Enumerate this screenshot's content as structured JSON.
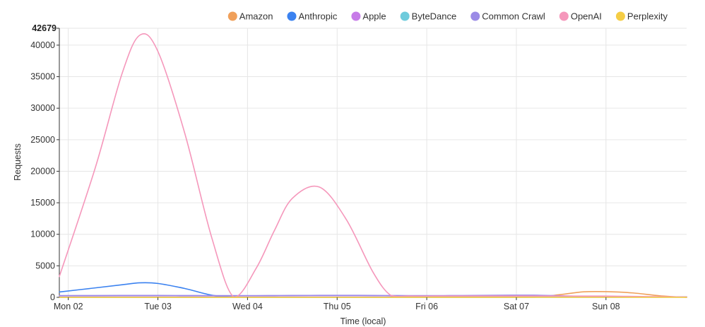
{
  "chart_data": {
    "type": "line",
    "title": "",
    "xlabel": "Time (local)",
    "ylabel": "Requests",
    "ylim": [
      0,
      42679
    ],
    "y_max_label": "42679",
    "y_ticks": [
      0,
      5000,
      10000,
      15000,
      20000,
      25000,
      30000,
      35000,
      40000
    ],
    "x_categories": [
      "Mon 02",
      "Tue 03",
      "Wed 04",
      "Thu 05",
      "Fri 06",
      "Sat 07",
      "Sun 08"
    ],
    "x_range": [
      -0.1,
      6.9
    ],
    "grid": true,
    "legend_position": "top-right",
    "x": [
      -0.1,
      0.3,
      0.6,
      0.8,
      1.0,
      1.3,
      1.6,
      1.85,
      2.1,
      2.3,
      2.5,
      2.8,
      3.1,
      3.4,
      3.6,
      3.8,
      4.1,
      4.4,
      4.8,
      5.2,
      5.5,
      5.75,
      6.0,
      6.3,
      6.6,
      6.9
    ],
    "series": [
      {
        "name": "Amazon",
        "color": "#f0a05a",
        "values": [
          0,
          0,
          0,
          0,
          0,
          0,
          0,
          0,
          0,
          0,
          0,
          0,
          0,
          0,
          0,
          0,
          0,
          0,
          0,
          20,
          450,
          870,
          900,
          700,
          250,
          0
        ]
      },
      {
        "name": "Anthropic",
        "color": "#3b82f0",
        "values": [
          850,
          1500,
          2000,
          2300,
          2200,
          1400,
          350,
          100,
          80,
          70,
          70,
          70,
          70,
          70,
          70,
          70,
          70,
          70,
          70,
          70,
          70,
          70,
          70,
          70,
          70,
          70
        ]
      },
      {
        "name": "Apple",
        "color": "#c77be8",
        "values": [
          80,
          80,
          80,
          80,
          80,
          80,
          80,
          80,
          80,
          80,
          80,
          80,
          80,
          80,
          80,
          80,
          80,
          80,
          80,
          80,
          80,
          80,
          80,
          80,
          80,
          80
        ]
      },
      {
        "name": "ByteDance",
        "color": "#6ecbdc",
        "values": [
          20,
          20,
          20,
          20,
          20,
          20,
          20,
          20,
          20,
          20,
          20,
          20,
          20,
          20,
          20,
          20,
          20,
          20,
          20,
          20,
          20,
          20,
          20,
          20,
          20,
          20
        ]
      },
      {
        "name": "Common Crawl",
        "color": "#9b8be6",
        "values": [
          280,
          290,
          300,
          300,
          300,
          290,
          280,
          280,
          280,
          290,
          300,
          310,
          320,
          300,
          290,
          280,
          280,
          290,
          330,
          340,
          250,
          150,
          100,
          90,
          80,
          70
        ]
      },
      {
        "name": "OpenAI",
        "color": "#f597bb",
        "values": [
          3300,
          20500,
          35500,
          41600,
          39000,
          26000,
          9500,
          0,
          4700,
          10600,
          15700,
          17500,
          12400,
          4000,
          300,
          200,
          200,
          200,
          200,
          200,
          200,
          200,
          200,
          150,
          100,
          50
        ]
      },
      {
        "name": "Perplexity",
        "color": "#f5cd45",
        "values": [
          10,
          10,
          10,
          10,
          10,
          10,
          10,
          10,
          10,
          10,
          10,
          10,
          10,
          10,
          10,
          10,
          10,
          10,
          10,
          10,
          10,
          10,
          10,
          10,
          10,
          10
        ]
      }
    ]
  }
}
